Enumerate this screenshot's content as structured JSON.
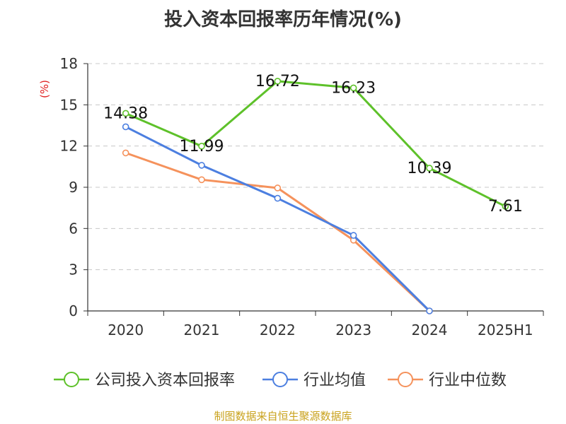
{
  "title": "投入资本回报率历年情况(%)",
  "source": "制图数据来自恒生聚源数据库",
  "colors": {
    "company": "#5ec12a",
    "industry_avg": "#4c7fe0",
    "industry_median": "#f5925c"
  },
  "chart_data": {
    "type": "line",
    "title": "投入资本回报率历年情况(%)",
    "ylabel": "(%)",
    "xlabel": "",
    "ylim": [
      0,
      18
    ],
    "yticks": [
      "0",
      "3",
      "6",
      "9",
      "12",
      "15",
      "18"
    ],
    "categories": [
      "2020",
      "2021",
      "2022",
      "2023",
      "2024",
      "2025H1"
    ],
    "grid": true,
    "legend_position": "bottom",
    "series": [
      {
        "name": "公司投入资本回报率",
        "color": "#5ec12a",
        "values": [
          14.38,
          11.99,
          16.72,
          16.23,
          10.39,
          7.61
        ],
        "labels": [
          "14.38",
          "11.99",
          "16.72",
          "16.23",
          "10.39",
          "7.61"
        ]
      },
      {
        "name": "行业均值",
        "color": "#4c7fe0",
        "values": [
          13.4,
          10.6,
          8.2,
          5.5,
          0.0,
          null
        ]
      },
      {
        "name": "行业中位数",
        "color": "#f5925c",
        "values": [
          11.5,
          9.55,
          8.95,
          5.15,
          0.0,
          null
        ]
      }
    ]
  }
}
